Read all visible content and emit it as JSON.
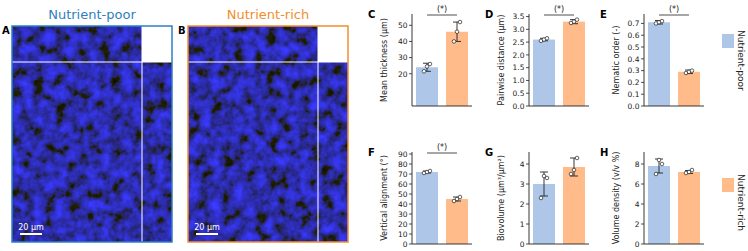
{
  "images": [
    {
      "panel_label": "A",
      "title": "Nutrient-poor",
      "color": "#2f7fc1",
      "scale_bar": "20 µm"
    },
    {
      "panel_label": "B",
      "title": "Nutrient-rich",
      "color": "#f28e2b",
      "scale_bar": "20 µm"
    }
  ],
  "figure_legend": [
    {
      "name": "Nutrient-poor",
      "color": "#aec7e8"
    },
    {
      "name": "Nutrient-rich",
      "color": "#ffbb8a"
    }
  ],
  "chart_data": [
    {
      "type": "bar",
      "panel_label": "C",
      "y_label": "Mean thickness (µm)",
      "categories": [
        null,
        null
      ],
      "values": [
        24,
        46
      ],
      "errors": [
        2.5,
        6
      ],
      "points": [
        [
          21.5,
          24.5,
          26
        ],
        [
          40,
          46,
          52
        ]
      ],
      "colors": [
        "#aec7e8",
        "#ffbb8a"
      ],
      "ylim": [
        0,
        57
      ],
      "yticks": [
        20,
        30,
        40,
        50
      ],
      "annotation": "(*)",
      "grid": false
    },
    {
      "type": "bar",
      "panel_label": "D",
      "y_label": "Pairwise distance (µm)",
      "categories": [
        null,
        null
      ],
      "values": [
        2.6,
        3.3
      ],
      "errors": [
        0.05,
        0.08
      ],
      "points": [
        [
          2.55,
          2.6,
          2.65
        ],
        [
          3.25,
          3.3,
          3.38
        ]
      ],
      "colors": [
        "#aec7e8",
        "#ffbb8a"
      ],
      "ylim": [
        0,
        3.6
      ],
      "yticks": [
        {
          "value": 0,
          "label": "0.0"
        },
        0.5,
        {
          "value": 1,
          "label": "1.0"
        },
        1.5,
        {
          "value": 2,
          "label": "2.0"
        },
        2.5,
        {
          "value": 3,
          "label": "3.0"
        },
        3.5
      ],
      "annotation": "(*)",
      "grid": false
    },
    {
      "type": "bar",
      "panel_label": "E",
      "y_label": "Nematic order (-)",
      "categories": [
        null,
        null
      ],
      "values": [
        0.71,
        0.29
      ],
      "errors": [
        0.015,
        0.015
      ],
      "points": [
        [
          0.7,
          0.71,
          0.72
        ],
        [
          0.28,
          0.29,
          0.3
        ]
      ],
      "colors": [
        "#aec7e8",
        "#ffbb8a"
      ],
      "ylim": [
        0,
        0.78
      ],
      "yticks": [
        {
          "value": 0,
          "label": "0.0"
        },
        0.1,
        0.2,
        0.3,
        0.4,
        0.5,
        0.6,
        0.7
      ],
      "annotation": "(*)",
      "grid": false
    },
    {
      "type": "bar",
      "panel_label": "F",
      "y_label": "Vertical alignment (°)",
      "categories": [
        null,
        null
      ],
      "values": [
        72,
        45
      ],
      "errors": [
        1,
        2
      ],
      "points": [
        [
          71,
          72,
          73
        ],
        [
          43,
          45,
          47
        ]
      ],
      "colors": [
        "#aec7e8",
        "#ffbb8a"
      ],
      "ylim": [
        0,
        92
      ],
      "yticks": [
        0,
        10,
        20,
        30,
        40,
        50,
        60,
        70,
        80,
        90
      ],
      "annotation": "(*)",
      "grid": false
    },
    {
      "type": "bar",
      "panel_label": "G",
      "y_label": "Biovolume (µm³/µm²)",
      "categories": [
        null,
        null
      ],
      "values": [
        3.0,
        3.85
      ],
      "errors": [
        0.6,
        0.45
      ],
      "points": [
        [
          2.3,
          3.4,
          3.3
        ],
        [
          3.5,
          3.7,
          4.3
        ]
      ],
      "colors": [
        "#aec7e8",
        "#ffbb8a"
      ],
      "ylim": [
        0,
        4.6
      ],
      "yticks": [
        0,
        1,
        2,
        3,
        4
      ],
      "grid": false
    },
    {
      "type": "bar",
      "panel_label": "H",
      "y_label": "Volume density (v/v %)",
      "categories": [
        null,
        null
      ],
      "values": [
        7.8,
        7.2
      ],
      "errors": [
        0.7,
        0.15
      ],
      "points": [
        [
          7.0,
          8.4,
          8.0
        ],
        [
          7.1,
          7.2,
          7.4
        ]
      ],
      "colors": [
        "#aec7e8",
        "#ffbb8a"
      ],
      "ylim": [
        0,
        9.2
      ],
      "yticks": [
        0,
        2,
        4,
        6,
        8
      ],
      "grid": false
    }
  ]
}
